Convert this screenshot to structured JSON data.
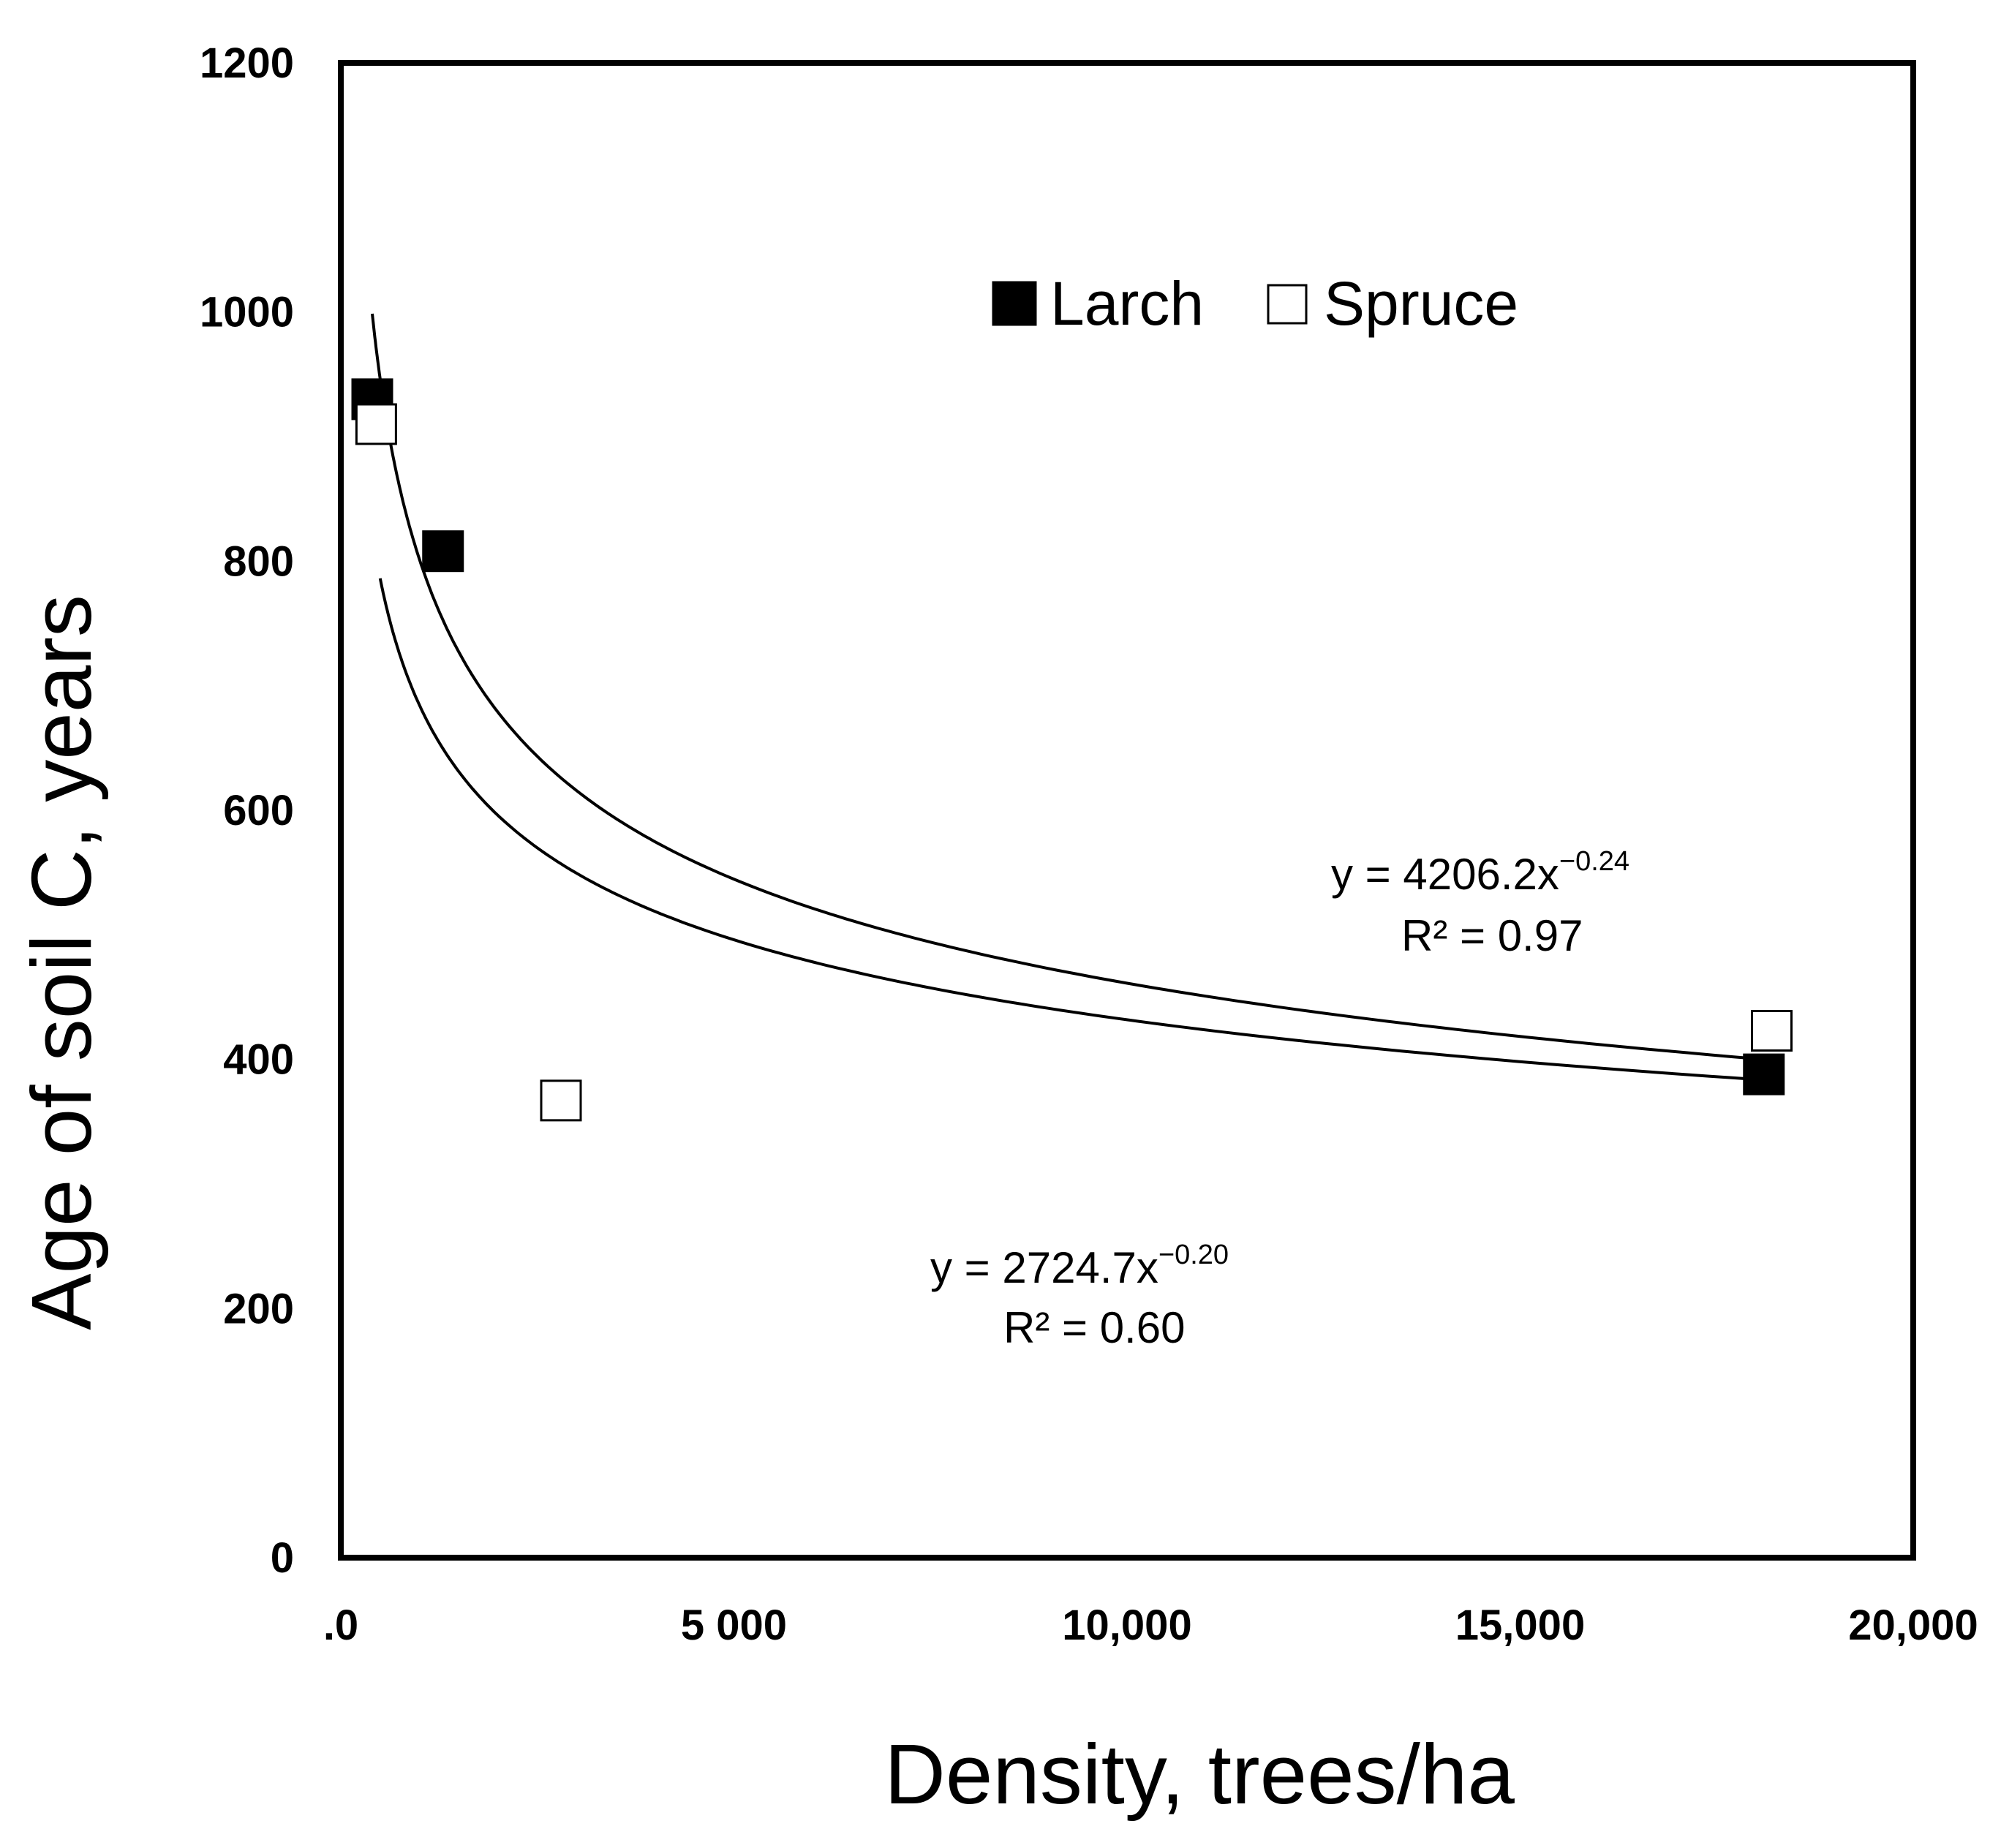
{
  "chart_data": {
    "type": "scatter",
    "title": "",
    "xlabel": "Density, trees/ha",
    "ylabel": "Age of soil C, years",
    "xlim": [
      0,
      20000
    ],
    "ylim": [
      0,
      1200
    ],
    "x_ticks": [
      0,
      5000,
      10000,
      15000,
      20000
    ],
    "x_tick_labels": [
      ".0",
      "5 000",
      "10,000",
      "15,000",
      "20,000"
    ],
    "y_ticks": [
      0,
      200,
      400,
      600,
      800,
      1000,
      1200
    ],
    "y_tick_labels": [
      "0",
      "200",
      "400",
      "600",
      "800",
      "1000",
      "1200"
    ],
    "grid": false,
    "legend_position": "top-center",
    "series": [
      {
        "name": "Larch",
        "marker": "filled-square",
        "color": "#000000",
        "points": [
          {
            "x": 400,
            "y": 930
          },
          {
            "x": 1300,
            "y": 808
          },
          {
            "x": 18100,
            "y": 388
          }
        ],
        "trendline": {
          "a": 4206.2,
          "b": -0.24,
          "x_range": [
            400,
            18000
          ],
          "equation_prefix": "y = 4206.2x",
          "equation_exponent": "−0.24",
          "r2_label": "R² = 0.97"
        }
      },
      {
        "name": "Spruce",
        "marker": "open-square",
        "color": "#000000",
        "points": [
          {
            "x": 450,
            "y": 910
          },
          {
            "x": 2800,
            "y": 367
          },
          {
            "x": 18200,
            "y": 423
          }
        ],
        "trendline": {
          "a": 2724.7,
          "b": -0.2,
          "x_range": [
            500,
            18200
          ],
          "equation_prefix": "y = 2724.7x",
          "equation_exponent": "−0.20",
          "r2_label": "R² = 0.60"
        }
      }
    ]
  }
}
